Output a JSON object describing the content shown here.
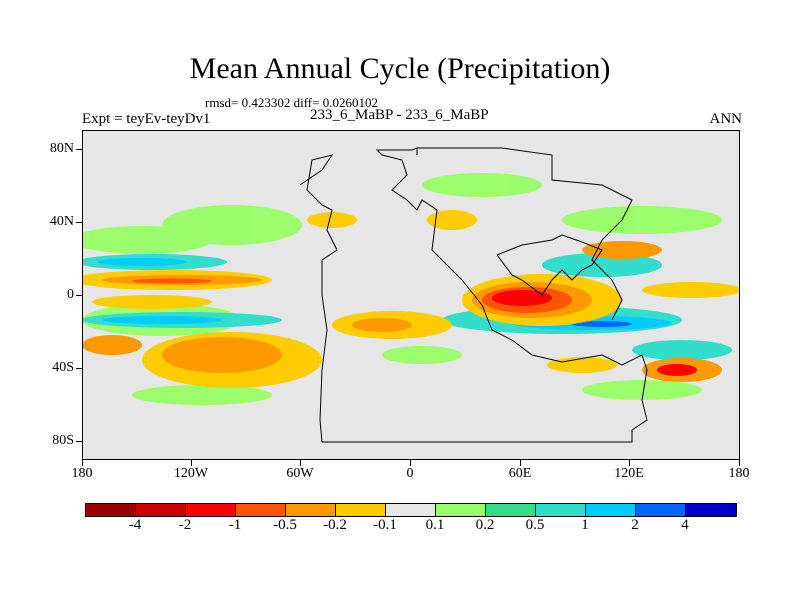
{
  "title": "Mean Annual Cycle (Precipitation)",
  "stats": "rmsd= 0.423302 diff= 0.0260102",
  "expt": "Expt = teyEv-teyDv1",
  "runs": "233_6_MaBP - 233_6_MaBP",
  "season": "ANN",
  "lat_labels": [
    "80N",
    "40N",
    "0",
    "40S",
    "80S"
  ],
  "lon_labels": [
    "180",
    "120W",
    "60W",
    "0",
    "60E",
    "120E",
    "180"
  ],
  "colorbar": {
    "colors": [
      "#990000",
      "#cc0000",
      "#ff0000",
      "#ff5500",
      "#ff9900",
      "#ffcc00",
      "#e6e6e6",
      "#99ff66",
      "#33dd88",
      "#33ddcc",
      "#00ccff",
      "#0066ff",
      "#0000cc"
    ],
    "labels": [
      "-4",
      "-2",
      "-1",
      "-0.5",
      "-0.2",
      "-0.1",
      "0.1",
      "0.2",
      "0.5",
      "1",
      "2",
      "4"
    ]
  }
}
